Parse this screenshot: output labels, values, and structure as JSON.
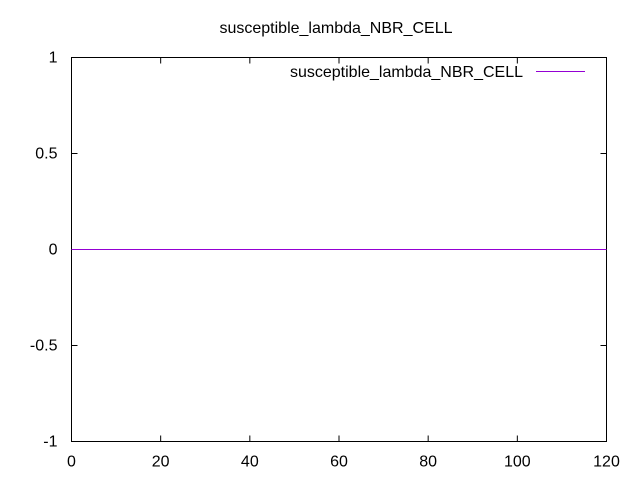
{
  "chart_data": {
    "type": "line",
    "title": "susceptible_lambda_NBR_CELL",
    "xlabel": "",
    "ylabel": "",
    "xlim": [
      0,
      120
    ],
    "ylim": [
      -1,
      1
    ],
    "x_ticks": [
      0,
      20,
      40,
      60,
      80,
      100,
      120
    ],
    "y_ticks": [
      -1,
      -0.5,
      0,
      0.5,
      1
    ],
    "x_tick_labels": [
      "0",
      "20",
      "40",
      "60",
      "80",
      "100",
      "120"
    ],
    "y_tick_labels": [
      "-1",
      "-0.5",
      "0",
      "0.5",
      "1"
    ],
    "grid": false,
    "legend_position": "top-right",
    "series": [
      {
        "name": "susceptible_lambda_NBR_CELL",
        "color": "#9400d3",
        "x": [
          0,
          120
        ],
        "y": [
          0,
          0
        ]
      }
    ]
  }
}
